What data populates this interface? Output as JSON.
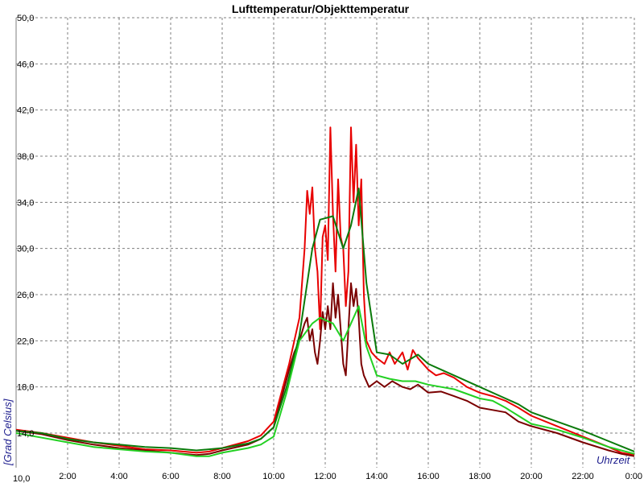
{
  "chart_data": {
    "type": "line",
    "title": "Lufttemperatur/Objekttemperatur",
    "ylabel": "[Grad Celsius]",
    "xlabel": "Uhrzeit",
    "x_unit": "hours",
    "xlim": [
      0,
      24
    ],
    "ylim": [
      11,
      50
    ],
    "grid": true,
    "y_ticks": [
      {
        "value": 14,
        "label": "14,0"
      },
      {
        "value": 18,
        "label": "18,0"
      },
      {
        "value": 22,
        "label": "22,0"
      },
      {
        "value": 26,
        "label": "26,0"
      },
      {
        "value": 30,
        "label": "30,0"
      },
      {
        "value": 34,
        "label": "34,0"
      },
      {
        "value": 38,
        "label": "38,0"
      },
      {
        "value": 42,
        "label": "42,0"
      },
      {
        "value": 46,
        "label": "46,0"
      },
      {
        "value": 50,
        "label": "50,0"
      }
    ],
    "y_bottom_label": "10,0",
    "x_ticks": [
      {
        "value": 2,
        "label": "2:00"
      },
      {
        "value": 4,
        "label": "4:00"
      },
      {
        "value": 6,
        "label": "6:00"
      },
      {
        "value": 8,
        "label": "8:00"
      },
      {
        "value": 10,
        "label": "10:00"
      },
      {
        "value": 12,
        "label": "12:00"
      },
      {
        "value": 14,
        "label": "14:00"
      },
      {
        "value": 16,
        "label": "16:00"
      },
      {
        "value": 18,
        "label": "18:00"
      },
      {
        "value": 20,
        "label": "20:00"
      },
      {
        "value": 22,
        "label": "22:00"
      },
      {
        "value": 24,
        "label": "0:00"
      }
    ],
    "series": [
      {
        "color": "#e80000",
        "points": [
          [
            0,
            14.3
          ],
          [
            1,
            14.0
          ],
          [
            2,
            13.6
          ],
          [
            3,
            13.2
          ],
          [
            4,
            12.9
          ],
          [
            5,
            12.6
          ],
          [
            6,
            12.5
          ],
          [
            7,
            12.3
          ],
          [
            7.5,
            12.4
          ],
          [
            8,
            12.7
          ],
          [
            9,
            13.3
          ],
          [
            9.5,
            13.8
          ],
          [
            10,
            15.0
          ],
          [
            10.3,
            17.5
          ],
          [
            10.6,
            20.0
          ],
          [
            10.8,
            22.0
          ],
          [
            11,
            24.0
          ],
          [
            11.2,
            30.0
          ],
          [
            11.3,
            35.0
          ],
          [
            11.4,
            33.0
          ],
          [
            11.5,
            35.3
          ],
          [
            11.6,
            30.0
          ],
          [
            11.7,
            28.0
          ],
          [
            11.8,
            23.0
          ],
          [
            11.9,
            31.0
          ],
          [
            12.0,
            32.0
          ],
          [
            12.1,
            29.0
          ],
          [
            12.2,
            40.5
          ],
          [
            12.3,
            33.0
          ],
          [
            12.4,
            28.0
          ],
          [
            12.5,
            36.0
          ],
          [
            12.6,
            31.0
          ],
          [
            12.7,
            30.0
          ],
          [
            12.8,
            25.0
          ],
          [
            12.9,
            28.0
          ],
          [
            13.0,
            40.5
          ],
          [
            13.1,
            34.0
          ],
          [
            13.2,
            39.0
          ],
          [
            13.3,
            32.0
          ],
          [
            13.4,
            36.0
          ],
          [
            13.5,
            26.0
          ],
          [
            13.6,
            22.0
          ],
          [
            13.8,
            21.0
          ],
          [
            14,
            20.5
          ],
          [
            14.3,
            20.0
          ],
          [
            14.5,
            21.0
          ],
          [
            14.7,
            20.0
          ],
          [
            15,
            21.0
          ],
          [
            15.2,
            19.5
          ],
          [
            15.4,
            21.2
          ],
          [
            15.6,
            20.5
          ],
          [
            16,
            19.5
          ],
          [
            16.3,
            19.0
          ],
          [
            16.6,
            19.2
          ],
          [
            17,
            18.8
          ],
          [
            17.5,
            18.0
          ],
          [
            18,
            17.5
          ],
          [
            18.5,
            17.2
          ],
          [
            19,
            16.8
          ],
          [
            19.5,
            16.2
          ],
          [
            20,
            15.5
          ],
          [
            21,
            14.6
          ],
          [
            22,
            13.7
          ],
          [
            23,
            12.8
          ],
          [
            23.5,
            12.3
          ],
          [
            24,
            12.1
          ]
        ]
      },
      {
        "color": "#7a0000",
        "points": [
          [
            0,
            14.2
          ],
          [
            1,
            13.9
          ],
          [
            2,
            13.4
          ],
          [
            3,
            13.0
          ],
          [
            4,
            12.7
          ],
          [
            5,
            12.5
          ],
          [
            6,
            12.3
          ],
          [
            7,
            12.1
          ],
          [
            7.5,
            12.2
          ],
          [
            8,
            12.5
          ],
          [
            9,
            13.0
          ],
          [
            9.5,
            13.5
          ],
          [
            10,
            14.5
          ],
          [
            10.3,
            17.0
          ],
          [
            10.6,
            19.5
          ],
          [
            10.8,
            21.0
          ],
          [
            11,
            22.0
          ],
          [
            11.2,
            23.5
          ],
          [
            11.3,
            24.0
          ],
          [
            11.4,
            22.0
          ],
          [
            11.5,
            23.0
          ],
          [
            11.6,
            21.0
          ],
          [
            11.7,
            20.0
          ],
          [
            11.8,
            22.0
          ],
          [
            11.9,
            24.5
          ],
          [
            12.0,
            23.0
          ],
          [
            12.1,
            25.0
          ],
          [
            12.2,
            23.0
          ],
          [
            12.3,
            27.0
          ],
          [
            12.4,
            24.0
          ],
          [
            12.5,
            26.0
          ],
          [
            12.6,
            23.0
          ],
          [
            12.7,
            20.0
          ],
          [
            12.8,
            19.0
          ],
          [
            12.9,
            23.0
          ],
          [
            13.0,
            27.0
          ],
          [
            13.1,
            25.0
          ],
          [
            13.2,
            26.5
          ],
          [
            13.3,
            24.0
          ],
          [
            13.4,
            20.0
          ],
          [
            13.5,
            19.0
          ],
          [
            13.7,
            18.0
          ],
          [
            14,
            18.5
          ],
          [
            14.3,
            18.0
          ],
          [
            14.6,
            18.5
          ],
          [
            15,
            18.0
          ],
          [
            15.3,
            17.8
          ],
          [
            15.6,
            18.2
          ],
          [
            16,
            17.5
          ],
          [
            16.5,
            17.6
          ],
          [
            17,
            17.2
          ],
          [
            17.5,
            16.8
          ],
          [
            18,
            16.2
          ],
          [
            18.5,
            16.0
          ],
          [
            19,
            15.8
          ],
          [
            19.5,
            15.0
          ],
          [
            20,
            14.6
          ],
          [
            21,
            14.0
          ],
          [
            22,
            13.2
          ],
          [
            23,
            12.5
          ],
          [
            23.5,
            12.2
          ],
          [
            24,
            12.0
          ]
        ]
      },
      {
        "color": "#0a7a0a",
        "points": [
          [
            0,
            14.2
          ],
          [
            1,
            14.0
          ],
          [
            2,
            13.5
          ],
          [
            3,
            13.2
          ],
          [
            4,
            13.0
          ],
          [
            5,
            12.8
          ],
          [
            6,
            12.7
          ],
          [
            7,
            12.5
          ],
          [
            7.5,
            12.6
          ],
          [
            8,
            12.7
          ],
          [
            9,
            13.1
          ],
          [
            9.5,
            13.5
          ],
          [
            10,
            14.5
          ],
          [
            10.5,
            18.0
          ],
          [
            11,
            22.5
          ],
          [
            11.5,
            30.0
          ],
          [
            11.8,
            32.5
          ],
          [
            12.3,
            32.8
          ],
          [
            12.7,
            30.0
          ],
          [
            13.0,
            32.0
          ],
          [
            13.3,
            35.2
          ],
          [
            13.6,
            27.0
          ],
          [
            14,
            21.0
          ],
          [
            14.5,
            20.8
          ],
          [
            15,
            20.0
          ],
          [
            15.6,
            20.8
          ],
          [
            16,
            20.0
          ],
          [
            16.5,
            19.5
          ],
          [
            17,
            19.0
          ],
          [
            18,
            18.0
          ],
          [
            19,
            17.0
          ],
          [
            19.5,
            16.5
          ],
          [
            20,
            15.8
          ],
          [
            21,
            15.0
          ],
          [
            22,
            14.2
          ],
          [
            23,
            13.3
          ],
          [
            24,
            12.4
          ]
        ]
      },
      {
        "color": "#22d022",
        "points": [
          [
            0,
            14.0
          ],
          [
            1,
            13.6
          ],
          [
            2,
            13.2
          ],
          [
            3,
            12.8
          ],
          [
            4,
            12.6
          ],
          [
            5,
            12.4
          ],
          [
            6,
            12.3
          ],
          [
            7,
            12.0
          ],
          [
            7.5,
            12.0
          ],
          [
            8,
            12.3
          ],
          [
            9,
            12.7
          ],
          [
            9.5,
            13.0
          ],
          [
            10,
            13.7
          ],
          [
            10.5,
            17.5
          ],
          [
            11,
            22.0
          ],
          [
            11.5,
            23.5
          ],
          [
            11.8,
            24.0
          ],
          [
            12.3,
            23.5
          ],
          [
            12.7,
            22.0
          ],
          [
            13.0,
            23.5
          ],
          [
            13.3,
            25.0
          ],
          [
            13.6,
            21.5
          ],
          [
            14,
            19.0
          ],
          [
            14.5,
            18.7
          ],
          [
            15,
            18.5
          ],
          [
            15.5,
            18.5
          ],
          [
            16,
            18.2
          ],
          [
            16.5,
            18.0
          ],
          [
            17,
            17.8
          ],
          [
            18,
            17.0
          ],
          [
            18.5,
            16.8
          ],
          [
            19,
            16.2
          ],
          [
            19.5,
            15.5
          ],
          [
            20,
            14.8
          ],
          [
            21,
            14.3
          ],
          [
            22,
            13.6
          ],
          [
            23,
            12.8
          ],
          [
            24,
            12.2
          ]
        ]
      }
    ]
  }
}
